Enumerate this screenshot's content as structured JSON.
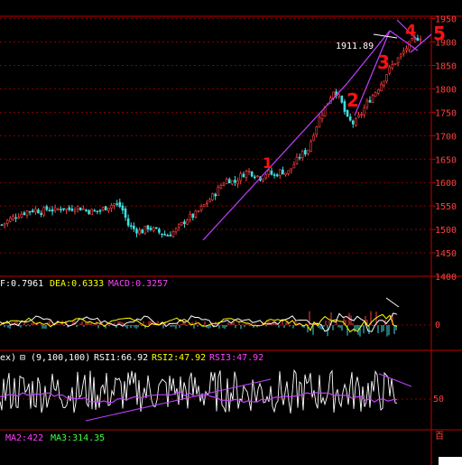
{
  "colors": {
    "background": "#000000",
    "frame": "#c00000",
    "grid": "#8a0000",
    "up_candle": "#ff4040",
    "down_candle": "#40e0e0",
    "annotation": "#ff1010",
    "trendline": "#c040ff",
    "macd_line": "#ffffff",
    "dea_line": "#ffff00",
    "macd_label": "#ff40ff",
    "rsi_line": "#ffffff",
    "rsi_ma": "#c040ff",
    "ma2": "#ff40ff",
    "ma3": "#40ff40"
  },
  "price_panel": {
    "peak_annotation": "1911.89",
    "wave_labels": [
      "1",
      "2",
      "3",
      "4",
      "5"
    ]
  },
  "macd_panel": {
    "diff_label": "F:0.7961",
    "dea_label": "DEA:0.6333",
    "macd_label": "MACD:0.3257",
    "axis_zero": "0"
  },
  "rsi_panel": {
    "title": "ex)",
    "toggle": "⊟",
    "params": "(9,100,100)",
    "rsi1": "RSI1:66.92",
    "rsi2": "RSI2:47.92",
    "rsi3": "RSI3:47.92",
    "axis_50": "50",
    "axis_corner": "百"
  },
  "volume_strip": {
    "ma2": "MA2:422",
    "ma3": "MA3:314.35"
  },
  "chart_data": [
    {
      "type": "candlestick",
      "title": "",
      "xlabel": "",
      "ylabel": "",
      "y_ticks": [
        1400,
        1450,
        1500,
        1550,
        1600,
        1650,
        1700,
        1750,
        1800,
        1850,
        1900,
        1950
      ],
      "y_tick_labels": [
        "1400",
        "1450",
        "1500",
        "1550",
        "1600",
        "1650",
        "1700",
        "1750",
        "1800",
        "1850",
        "1900",
        "1950"
      ],
      "ylim": [
        1400,
        1955
      ],
      "grid": true,
      "close_path": [
        1510,
        1520,
        1528,
        1534,
        1540,
        1542,
        1538,
        1545,
        1540,
        1547,
        1542,
        1548,
        1545,
        1540,
        1538,
        1542,
        1550,
        1555,
        1548,
        1510,
        1500,
        1495,
        1505,
        1498,
        1492,
        1488,
        1496,
        1510,
        1525,
        1530,
        1545,
        1560,
        1575,
        1595,
        1608,
        1600,
        1615,
        1625,
        1618,
        1610,
        1622,
        1615,
        1625,
        1620,
        1640,
        1660,
        1668,
        1710,
        1745,
        1770,
        1800,
        1775,
        1735,
        1725,
        1745,
        1770,
        1790,
        1810,
        1835,
        1855,
        1870,
        1890,
        1905,
        1911.89
      ],
      "peak": 1911.89,
      "annotations": [
        "1911.89",
        "1",
        "2",
        "3",
        "4",
        "5"
      ]
    },
    {
      "type": "line",
      "title": "MACD",
      "series": [
        {
          "name": "DIFF",
          "last": 0.7961
        },
        {
          "name": "DEA",
          "last": 0.6333
        },
        {
          "name": "MACD",
          "last": 0.3257
        }
      ],
      "y_ticks": [
        0
      ],
      "y_tick_labels": [
        "0"
      ]
    },
    {
      "type": "line",
      "title": "RSI",
      "params": "(9,100,100)",
      "series": [
        {
          "name": "RSI1",
          "last": 66.92
        },
        {
          "name": "RSI2",
          "last": 47.92
        },
        {
          "name": "RSI3",
          "last": 47.92
        }
      ],
      "y_ticks": [
        50
      ],
      "y_tick_labels": [
        "50"
      ]
    }
  ]
}
